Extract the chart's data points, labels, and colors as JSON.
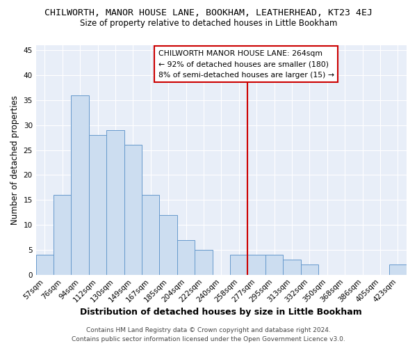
{
  "title": "CHILWORTH, MANOR HOUSE LANE, BOOKHAM, LEATHERHEAD, KT23 4EJ",
  "subtitle": "Size of property relative to detached houses in Little Bookham",
  "xlabel": "Distribution of detached houses by size in Little Bookham",
  "ylabel": "Number of detached properties",
  "footer_line1": "Contains HM Land Registry data © Crown copyright and database right 2024.",
  "footer_line2": "Contains public sector information licensed under the Open Government Licence v3.0.",
  "bar_labels": [
    "57sqm",
    "76sqm",
    "94sqm",
    "112sqm",
    "130sqm",
    "149sqm",
    "167sqm",
    "185sqm",
    "204sqm",
    "222sqm",
    "240sqm",
    "258sqm",
    "277sqm",
    "295sqm",
    "313sqm",
    "332sqm",
    "350sqm",
    "368sqm",
    "386sqm",
    "405sqm",
    "423sqm"
  ],
  "bar_values": [
    4,
    16,
    36,
    28,
    29,
    26,
    16,
    12,
    7,
    5,
    0,
    4,
    4,
    4,
    3,
    2,
    0,
    0,
    0,
    0,
    2
  ],
  "bar_color": "#ccddf0",
  "bar_edge_color": "#6699cc",
  "ylim": [
    0,
    46
  ],
  "yticks": [
    0,
    5,
    10,
    15,
    20,
    25,
    30,
    35,
    40,
    45
  ],
  "vline_color": "#cc0000",
  "annotation_title": "CHILWORTH MANOR HOUSE LANE: 264sqm",
  "annotation_line1": "← 92% of detached houses are smaller (180)",
  "annotation_line2": "8% of semi-detached houses are larger (15) →",
  "background_color": "#ffffff",
  "plot_bg_color": "#e8eef8",
  "grid_color": "#ffffff",
  "title_fontsize": 9.5,
  "subtitle_fontsize": 8.5,
  "xlabel_fontsize": 9,
  "ylabel_fontsize": 8.5,
  "tick_fontsize": 7.5,
  "annotation_fontsize": 7.8,
  "footer_fontsize": 6.5
}
